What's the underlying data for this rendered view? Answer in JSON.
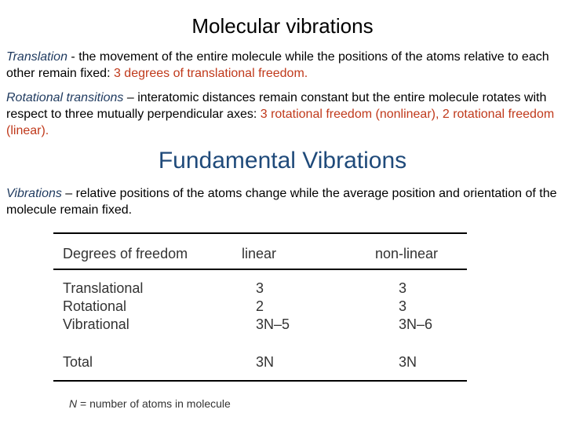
{
  "title": "Molecular vibrations",
  "translation": {
    "term": "Translation",
    "text": " - the movement of the entire molecule while the positions of the atoms relative to each other remain fixed: ",
    "highlight": "3 degrees of translational freedom."
  },
  "rotation": {
    "term": "Rotational transitions",
    "text": " – interatomic distances remain constant but the entire molecule rotates with respect to three mutually perpendicular axes: ",
    "highlight": "3 rotational freedom (nonlinear), 2 rotational freedom (linear)."
  },
  "subtitle": "Fundamental Vibrations",
  "vibrations": {
    "term": "Vibrations",
    "text": " – relative positions of the atoms change while the average position and orientation of the molecule remain fixed."
  },
  "table": {
    "headers": [
      "Degrees of freedom",
      "linear",
      "non-linear"
    ],
    "rows": [
      [
        "Translational",
        "3",
        "3"
      ],
      [
        "Rotational",
        "2",
        "3"
      ],
      [
        "Vibrational",
        "3N–5",
        "3N–6"
      ]
    ],
    "total": [
      "Total",
      "3N",
      "3N"
    ]
  },
  "footnote": {
    "symbol": "N",
    "text": " = number of atoms in molecule"
  }
}
